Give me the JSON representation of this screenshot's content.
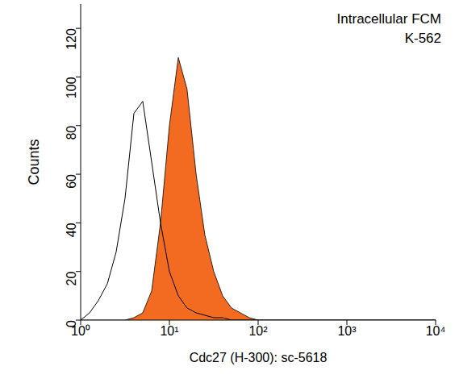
{
  "chart_data": {
    "type": "area",
    "title": "Intracellular FCM",
    "subtitle": "K-562",
    "x_label": "Cdc27 (H-300): sc-5618",
    "y_label": "Counts",
    "log": "x",
    "grid": false,
    "x": [
      1,
      1.26,
      1.58,
      2,
      2.51,
      3.16,
      3.98,
      5.01,
      6.31,
      7.94,
      10,
      12.6,
      15.8,
      20,
      25.1,
      31.6,
      39.8,
      50.1,
      63.1,
      79.4,
      100,
      126,
      158,
      200,
      1000,
      10000
    ],
    "xlim": [
      1,
      10000
    ],
    "xticks": [
      {
        "value": 1,
        "label": "10⁰"
      },
      {
        "value": 10,
        "label": "10¹"
      },
      {
        "value": 100,
        "label": "10²"
      },
      {
        "value": 1000,
        "label": "10³"
      },
      {
        "value": 10000,
        "label": "10⁴"
      }
    ],
    "ylim": [
      0,
      130
    ],
    "yticks": [
      0,
      20,
      40,
      60,
      80,
      100,
      120
    ],
    "series": [
      {
        "type": "area",
        "color": "#f26b21",
        "values": [
          0,
          0,
          0,
          0,
          0,
          0,
          1,
          3,
          12,
          40,
          80,
          108,
          95,
          60,
          35,
          20,
          10,
          5,
          3,
          1,
          0,
          0,
          0,
          0,
          0,
          0
        ]
      },
      {
        "type": "line",
        "color": "#000000",
        "values": [
          0,
          3,
          8,
          15,
          28,
          50,
          85,
          90,
          65,
          40,
          20,
          10,
          5,
          3,
          2,
          1,
          1,
          0,
          0,
          0,
          0,
          0,
          0,
          0,
          0,
          0
        ]
      }
    ]
  }
}
